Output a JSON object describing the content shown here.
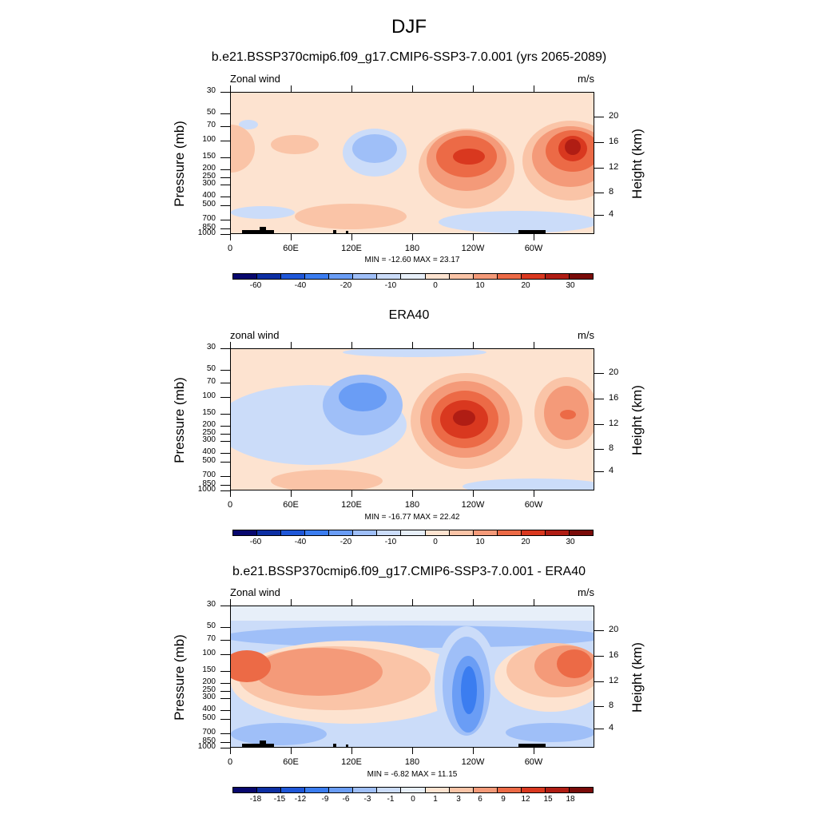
{
  "figure_title": "DJF",
  "chart_data": [
    {
      "type": "heatmap",
      "title": "b.e21.BSSP370cmip6.f09_g17.CMIP6-SSP3-7.0.001 (yrs 2065-2089)",
      "left_label": "Zonal wind",
      "right_label": "m/s",
      "ylabel": "Pressure (mb)",
      "ylabel_right": "Height (km)",
      "xticks": [
        "0",
        "60E",
        "120E",
        "180",
        "120W",
        "60W"
      ],
      "yticks": [
        "30",
        "50",
        "70",
        "100",
        "150",
        "200",
        "250",
        "300",
        "400",
        "500",
        "700",
        "850",
        "1000"
      ],
      "yticks_right": [
        "20",
        "16",
        "12",
        "8",
        "4"
      ],
      "min_max": "MIN = -12.60  MAX =  23.17",
      "colorbar_labels": [
        "-60",
        "-40",
        "-20",
        "-10",
        "0",
        "10",
        "20",
        "30"
      ],
      "summary": {
        "min": -12.6,
        "max": 23.17
      },
      "features": [
        {
          "lon": 90,
          "p": 110,
          "value": -8
        },
        {
          "lon": 235,
          "p": 150,
          "value": 20
        },
        {
          "lon": 305,
          "p": 130,
          "value": 23
        },
        {
          "lon": 120,
          "p": 800,
          "value": 4
        }
      ]
    },
    {
      "type": "heatmap",
      "title": "ERA40",
      "left_label": "zonal wind",
      "right_label": "m/s",
      "ylabel": "Pressure (mb)",
      "ylabel_right": "Height (km)",
      "xticks": [
        "0",
        "60E",
        "120E",
        "180",
        "120W",
        "60W"
      ],
      "yticks": [
        "30",
        "50",
        "70",
        "100",
        "150",
        "200",
        "250",
        "300",
        "400",
        "500",
        "700",
        "850",
        "1000"
      ],
      "yticks_right": [
        "20",
        "16",
        "12",
        "8",
        "4"
      ],
      "min_max": "MIN = -16.77  MAX =  22.42",
      "colorbar_labels": [
        "-60",
        "-40",
        "-20",
        "-10",
        "0",
        "10",
        "20",
        "30"
      ],
      "summary": {
        "min": -16.77,
        "max": 22.42
      },
      "features": [
        {
          "lon": 120,
          "p": 120,
          "value": -14
        },
        {
          "lon": 230,
          "p": 160,
          "value": 22
        },
        {
          "lon": 330,
          "p": 160,
          "value": 14
        }
      ]
    },
    {
      "type": "heatmap",
      "title": "b.e21.BSSP370cmip6.f09_g17.CMIP6-SSP3-7.0.001 - ERA40",
      "left_label": "Zonal wind",
      "right_label": "m/s",
      "ylabel": "Pressure (mb)",
      "ylabel_right": "Height (km)",
      "xticks": [
        "0",
        "60E",
        "120E",
        "180",
        "120W",
        "60W"
      ],
      "yticks": [
        "30",
        "50",
        "70",
        "100",
        "150",
        "200",
        "250",
        "300",
        "400",
        "500",
        "700",
        "850",
        "1000"
      ],
      "yticks_right": [
        "20",
        "16",
        "12",
        "8",
        "4"
      ],
      "min_max": "MIN = -6.82  MAX =  11.15",
      "colorbar_labels": [
        "-18",
        "-15",
        "-12",
        "-9",
        "-6",
        "-3",
        "-1",
        "0",
        "1",
        "3",
        "6",
        "9",
        "12",
        "15",
        "18"
      ],
      "summary": {
        "min": -6.82,
        "max": 11.15
      },
      "features": [
        {
          "lon": 5,
          "p": 110,
          "value": 10
        },
        {
          "lon": 235,
          "p": 220,
          "value": -6
        },
        {
          "lon": 330,
          "p": 120,
          "value": 11
        },
        {
          "lon": 110,
          "p": 200,
          "value": 6
        }
      ]
    }
  ],
  "colors": {
    "palette": [
      "#08086e",
      "#0d2fa3",
      "#1f57d8",
      "#3b7df0",
      "#6a9df5",
      "#9fbff8",
      "#cbdcf9",
      "#e7eff9",
      "#fde3d0",
      "#fac4a7",
      "#f49a79",
      "#ec6a46",
      "#d9381f",
      "#b01d14",
      "#7a0b09"
    ],
    "land": "#000000"
  }
}
